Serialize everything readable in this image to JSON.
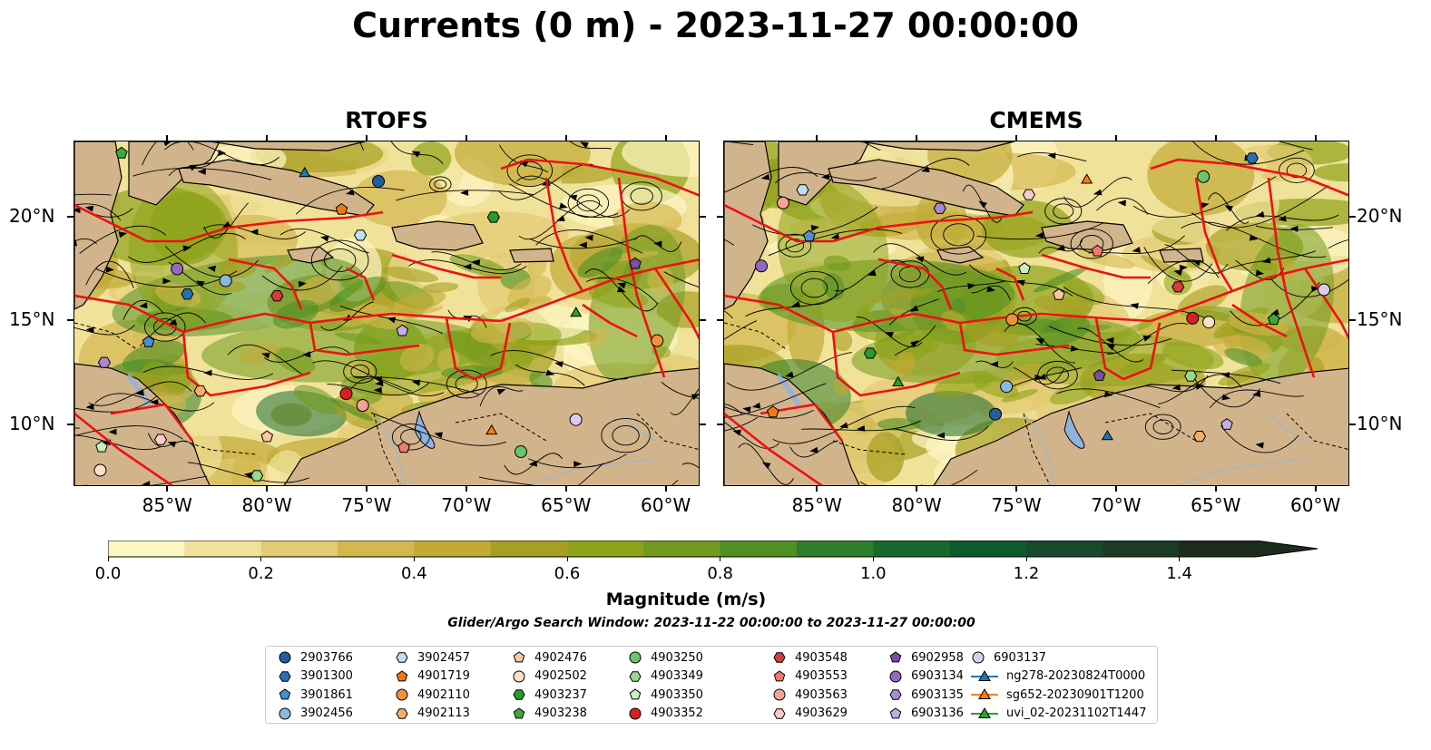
{
  "title": "Currents (0 m) - 2023-11-27 00:00:00",
  "panels": [
    {
      "title": "RTOFS"
    },
    {
      "title": "CMEMS"
    }
  ],
  "axes": {
    "lon_ticks": [
      "85°W",
      "80°W",
      "75°W",
      "70°W",
      "65°W",
      "60°W"
    ],
    "lat_ticks": [
      "20°N",
      "15°N",
      "10°N"
    ],
    "extent": {
      "lon": [
        -89.7,
        -58.3
      ],
      "lat": [
        7.0,
        23.7
      ]
    }
  },
  "colorbar": {
    "label": "Magnitude (m/s)",
    "ticks": [
      "0.0",
      "0.2",
      "0.4",
      "0.6",
      "0.8",
      "1.0",
      "1.2",
      "1.4"
    ],
    "range": [
      0.0,
      1.5
    ],
    "colors": [
      "#fdf6c3",
      "#f1e29a",
      "#e2cb72",
      "#d3b74f",
      "#c2aa36",
      "#a79f22",
      "#8ea319",
      "#6f9a1d",
      "#4f8f24",
      "#2f7e2b",
      "#17692e",
      "#0f5a2d",
      "#174a2a",
      "#1d3b24",
      "#1c2b1b"
    ],
    "extend": "max"
  },
  "search_window": "Glider/Argo Search Window: 2023-11-22 00:00:00 to 2023-11-27 00:00:00",
  "legend": {
    "columns": [
      [
        {
          "label": "2903766",
          "marker": "circle",
          "color": "#1f5fa0"
        },
        {
          "label": "3901300",
          "marker": "hexagon",
          "color": "#2a6fb5"
        },
        {
          "label": "3901861",
          "marker": "pentagon",
          "color": "#4a8fd0"
        },
        {
          "label": "3902456",
          "marker": "circle",
          "color": "#8ab8e3"
        }
      ],
      [
        {
          "label": "3902457",
          "marker": "hexagon",
          "color": "#c2def5"
        },
        {
          "label": "4901719",
          "marker": "pentagon",
          "color": "#ef7a12"
        },
        {
          "label": "4902110",
          "marker": "circle",
          "color": "#f2913a"
        },
        {
          "label": "4902113",
          "marker": "hexagon",
          "color": "#f7ae6a"
        }
      ],
      [
        {
          "label": "4902476",
          "marker": "pentagon",
          "color": "#f9c99a"
        },
        {
          "label": "4902502",
          "marker": "circle",
          "color": "#fde0c5"
        },
        {
          "label": "4903237",
          "marker": "hexagon",
          "color": "#2a9a2a"
        },
        {
          "label": "4903238",
          "marker": "pentagon",
          "color": "#3aaa3a"
        }
      ],
      [
        {
          "label": "4903250",
          "marker": "circle",
          "color": "#6cc46c"
        },
        {
          "label": "4903349",
          "marker": "hexagon",
          "color": "#97d98f"
        },
        {
          "label": "4903350",
          "marker": "pentagon",
          "color": "#c7efc0"
        },
        {
          "label": "4903352",
          "marker": "circle",
          "color": "#d62020"
        }
      ],
      [
        {
          "label": "4903548",
          "marker": "hexagon",
          "color": "#d93a3a"
        },
        {
          "label": "4903553",
          "marker": "pentagon",
          "color": "#ee7a70"
        },
        {
          "label": "4903563",
          "marker": "circle",
          "color": "#f4a29a"
        },
        {
          "label": "4903629",
          "marker": "hexagon",
          "color": "#f9cac6"
        }
      ],
      [
        {
          "label": "6902958",
          "marker": "pentagon",
          "color": "#7b4ea8"
        },
        {
          "label": "6903134",
          "marker": "circle",
          "color": "#9268c0"
        },
        {
          "label": "6903135",
          "marker": "hexagon",
          "color": "#a98ad2"
        },
        {
          "label": "6903136",
          "marker": "pentagon",
          "color": "#c4aee3"
        }
      ],
      [
        {
          "label": "6903137",
          "marker": "circle",
          "color": "#dccbf0"
        },
        {
          "label": "ng278-20230824T0000",
          "marker": "triangle-line",
          "color": "#1f77b4"
        },
        {
          "label": "sg652-20230901T1200",
          "marker": "triangle-line",
          "color": "#ff7f0e"
        },
        {
          "label": "uvi_02-20231102T1447",
          "marker": "triangle-line",
          "color": "#2ca02c"
        }
      ]
    ]
  },
  "colors": {
    "land": "#d2b48c",
    "eez_lines": "#ee1111",
    "lakes": "#8fb3de",
    "rivers": "#9fb5cf",
    "streamlines": "#000000"
  }
}
